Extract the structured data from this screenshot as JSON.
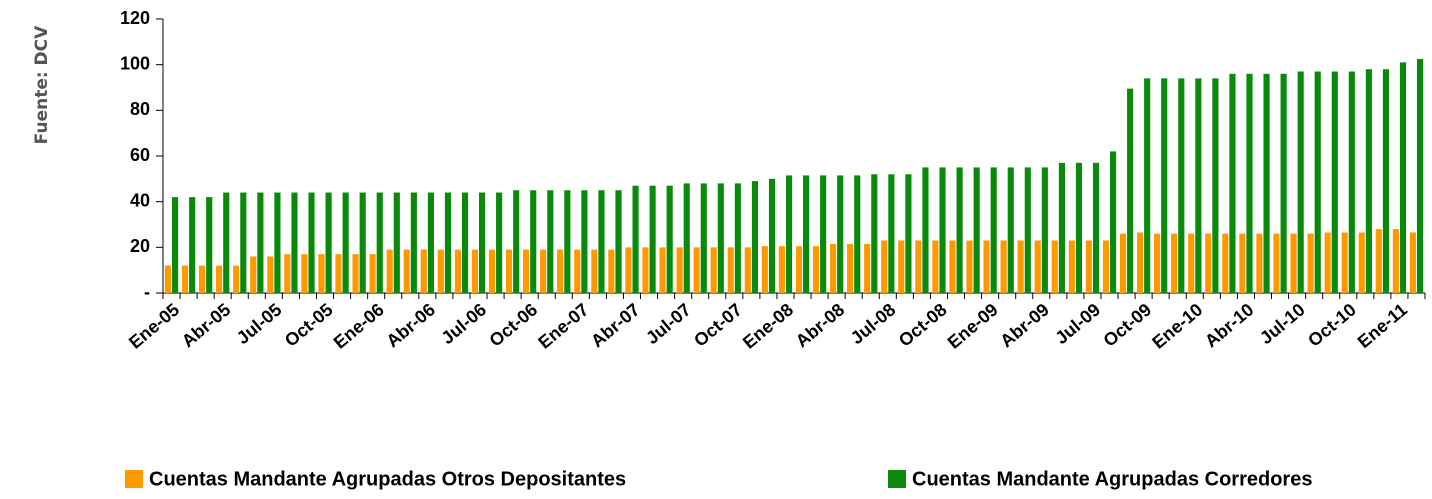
{
  "chart_data": {
    "type": "bar",
    "source": "Fuente: DCV",
    "categories": [
      "Ene-05",
      null,
      null,
      "Abr-05",
      null,
      null,
      "Jul-05",
      null,
      null,
      "Oct-05",
      null,
      null,
      "Ene-06",
      null,
      null,
      "Abr-06",
      null,
      null,
      "Jul-06",
      null,
      null,
      "Oct-06",
      null,
      null,
      "Ene-07",
      null,
      null,
      "Abr-07",
      null,
      null,
      "Jul-07",
      null,
      null,
      "Oct-07",
      null,
      null,
      "Ene-08",
      null,
      null,
      "Abr-08",
      null,
      null,
      "Jul-08",
      null,
      null,
      "Oct-08",
      null,
      null,
      "Ene-09",
      null,
      null,
      "Abr-09",
      null,
      null,
      "Jul-09",
      null,
      null,
      "Oct-09",
      null,
      null,
      "Ene-10",
      null,
      null,
      "Abr-10",
      null,
      null,
      "Jul-10",
      null,
      null,
      "Oct-10",
      null,
      null,
      "Ene-11",
      null
    ],
    "series": [
      {
        "name": "Cuentas Mandante Agrupadas Otros Depositantes",
        "color": "#ff9900",
        "values": [
          12,
          12,
          12,
          12,
          12,
          16,
          16,
          17,
          17,
          17,
          17,
          17,
          17,
          19,
          19,
          19,
          19,
          19,
          19,
          19,
          19,
          19,
          19,
          19,
          19,
          19,
          19,
          20,
          20,
          20,
          20,
          20,
          20,
          20,
          20,
          20.5,
          20.5,
          20.5,
          20.5,
          21.5,
          21.5,
          21.5,
          23,
          23,
          23,
          23,
          23,
          23,
          23,
          23,
          23,
          23,
          23,
          23,
          23,
          23,
          26,
          26.5,
          26,
          26,
          26,
          26,
          26,
          26,
          26,
          26,
          26,
          26,
          26.5,
          26.5,
          26.5,
          28,
          28,
          26.5
        ]
      },
      {
        "name": "Cuentas Mandante Agrupadas Corredores",
        "color": "#0a8a0a",
        "values": [
          42,
          42,
          42,
          44,
          44,
          44,
          44,
          44,
          44,
          44,
          44,
          44,
          44,
          44,
          44,
          44,
          44,
          44,
          44,
          44,
          45,
          45,
          45,
          45,
          45,
          45,
          45,
          47,
          47,
          47,
          48,
          48,
          48,
          48,
          49,
          50,
          51.5,
          51.5,
          51.5,
          51.5,
          51.5,
          52,
          52,
          52,
          55,
          55,
          55,
          55,
          55,
          55,
          55,
          55,
          57,
          57,
          57,
          62,
          89.5,
          94,
          94,
          94,
          94,
          94,
          96,
          96,
          96,
          96,
          97,
          97,
          97,
          97,
          98,
          98,
          101,
          102.5
        ]
      }
    ],
    "ylim": [
      0,
      120
    ],
    "yticks": [
      {
        "value": 0,
        "label": "-"
      },
      20,
      40,
      60,
      80,
      100,
      120
    ]
  }
}
